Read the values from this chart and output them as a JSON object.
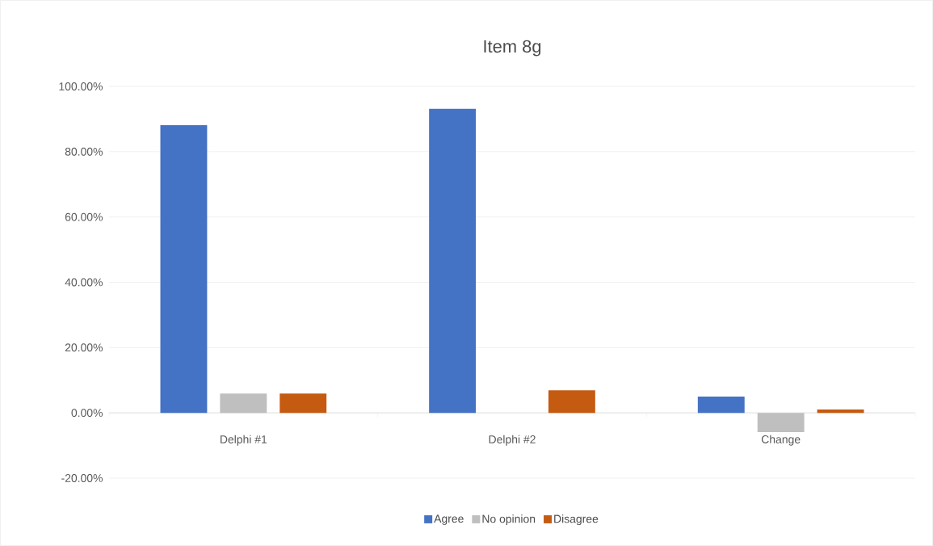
{
  "chart_data": {
    "type": "bar",
    "title": "Item 8g",
    "categories": [
      "Delphi #1",
      "Delphi #2",
      "Change"
    ],
    "series": [
      {
        "name": "Agree",
        "color": "#4472c4",
        "values": [
          88.1,
          93.1,
          5.0
        ]
      },
      {
        "name": "No opinion",
        "color": "#bfbfbf",
        "values": [
          5.9,
          0,
          -5.9
        ]
      },
      {
        "name": "Disagree",
        "color": "#c55a11",
        "values": [
          5.9,
          6.9,
          1.0
        ]
      }
    ],
    "ylim": [
      -20,
      100
    ],
    "yticks": [
      {
        "value": -20,
        "label": "-20.00%"
      },
      {
        "value": 0,
        "label": "0.00%"
      },
      {
        "value": 20,
        "label": "20.00%"
      },
      {
        "value": 40,
        "label": "40.00%"
      },
      {
        "value": 60,
        "label": "60.00%"
      },
      {
        "value": 80,
        "label": "80.00%"
      },
      {
        "value": 100,
        "label": "100.00%"
      }
    ],
    "grid": "y",
    "legend": "bottom"
  }
}
